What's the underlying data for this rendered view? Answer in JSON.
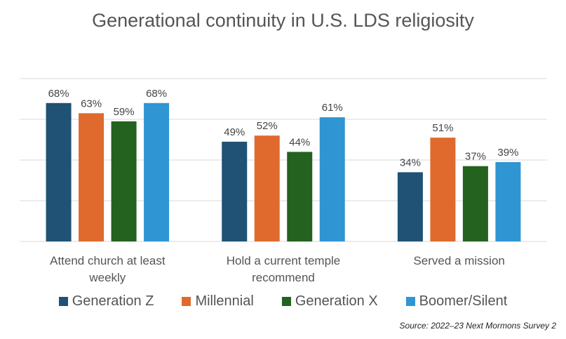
{
  "chart_data": {
    "type": "bar",
    "title": "Generational continuity in U.S. LDS religiosity",
    "categories": [
      "Attend church at least weekly",
      "Hold a current temple recommend",
      "Served a mission"
    ],
    "series": [
      {
        "name": "Generation Z",
        "color": "#1f5274",
        "values": [
          68,
          49,
          34
        ],
        "labels": [
          "68%",
          "49%",
          "34%"
        ]
      },
      {
        "name": "Millennial",
        "color": "#e06a2e",
        "values": [
          63,
          52,
          51
        ],
        "labels": [
          "63%",
          "52%",
          "51%"
        ]
      },
      {
        "name": "Generation X",
        "color": "#23621f",
        "values": [
          59,
          44,
          37
        ],
        "labels": [
          "59%",
          "44%",
          "37%"
        ]
      },
      {
        "name": "Boomer/Silent",
        "color": "#3095d3",
        "values": [
          68,
          61,
          39
        ],
        "labels": [
          "68%",
          "61%",
          "39%"
        ]
      }
    ],
    "ylim": [
      0,
      80
    ],
    "grid": true,
    "legend": "bottom",
    "source": "Source: 2022–23 Next Mormons Survey 2"
  }
}
